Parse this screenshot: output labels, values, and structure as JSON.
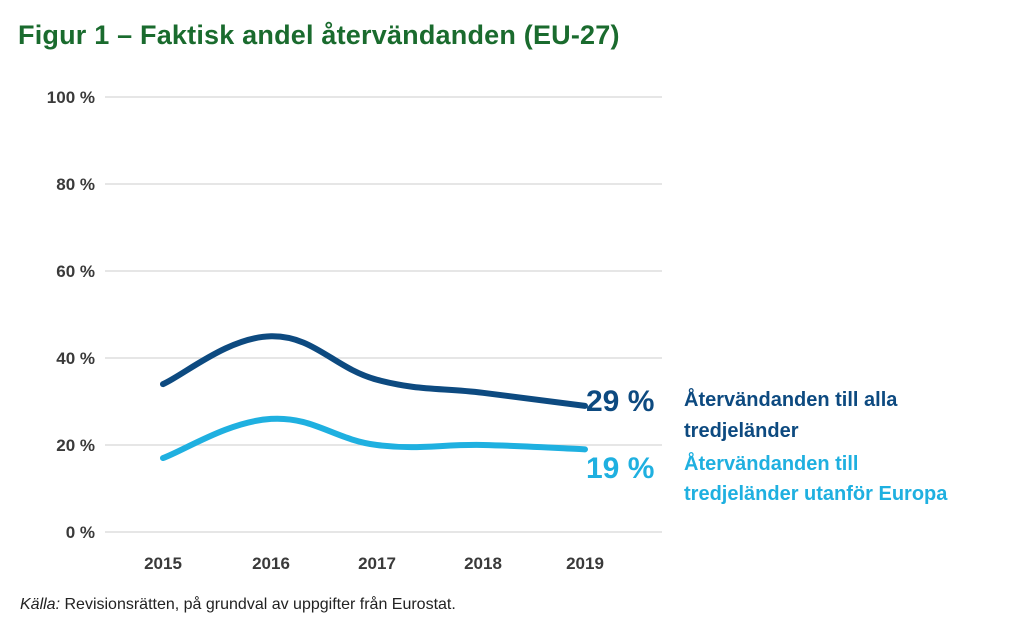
{
  "title": "Figur 1 – Faktisk andel återvändanden (EU-27)",
  "source_label": "Källa:",
  "source_text": "Revisionsrätten, på grundval av uppgifter från Eurostat.",
  "colors": {
    "title": "#1a6b2e",
    "series_all": "#0d4a80",
    "series_outside": "#1fb0e0",
    "grid": "#d6d6d6",
    "tick": "#3a3a3a"
  },
  "chart_data": {
    "type": "line",
    "x": [
      "2015",
      "2016",
      "2017",
      "2018",
      "2019"
    ],
    "ylim": [
      0,
      100
    ],
    "yticks": [
      0,
      20,
      40,
      60,
      80,
      100
    ],
    "ytick_labels": [
      "0 %",
      "20 %",
      "40 %",
      "60 %",
      "80 %",
      "100 %"
    ],
    "grid": true,
    "legend": "right",
    "series": [
      {
        "name": "Återvändanden till alla tredjeländer",
        "name_lines": [
          "Återvändanden till alla",
          "tredjeländer"
        ],
        "values": [
          34,
          45,
          35,
          32,
          29
        ],
        "end_label": "29 %"
      },
      {
        "name": "Återvändanden till tredjeländer utanför Europa",
        "name_lines": [
          "Återvändanden till",
          "tredjeländer utanför Europa"
        ],
        "values": [
          17,
          26,
          20,
          20,
          19
        ],
        "end_label": "19 %"
      }
    ]
  }
}
